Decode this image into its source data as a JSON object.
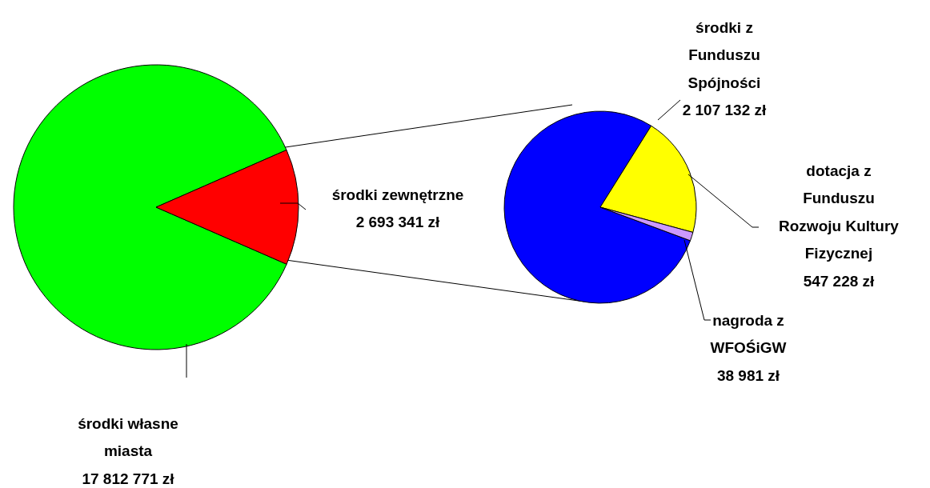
{
  "chart_data": [
    {
      "type": "pie",
      "categories": [
        "środki własne miasta",
        "środki zewnętrzne"
      ],
      "values": [
        17812771,
        2693341
      ],
      "colors": [
        "#00ff00",
        "#ff0000"
      ],
      "value_labels": [
        "17 812 771 zł",
        "2 693 341 zł"
      ]
    },
    {
      "type": "pie",
      "categories": [
        "środki z Funduszu Spójności",
        "dotacja z Funduszu Rozwoju Kultury Fizycznej",
        "nagroda z WFOŚiGW"
      ],
      "values": [
        2107132,
        547228,
        38981
      ],
      "colors": [
        "#0000ff",
        "#ffff00",
        "#cc99ff"
      ],
      "value_labels": [
        "2 107 132 zł",
        "547 228 zł",
        "38 981 zł"
      ]
    }
  ]
}
